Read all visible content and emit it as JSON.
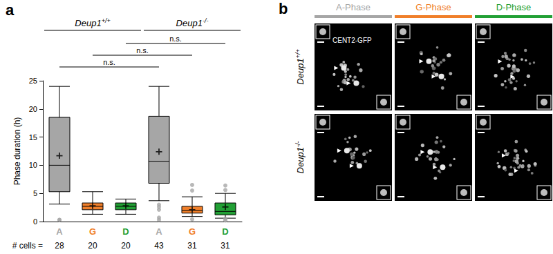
{
  "chart_data": {
    "type": "boxplot",
    "panel_label": "a",
    "categories": [
      "A",
      "G",
      "D",
      "A",
      "G",
      "D"
    ],
    "colors": [
      "#a6a6a6",
      "#f07f2a",
      "#22a035",
      "#a6a6a6",
      "#f07f2a",
      "#22a035"
    ],
    "boxes": [
      [
        3.1,
        5.3,
        10,
        18.5,
        24
      ],
      [
        1.3,
        2.1,
        2.7,
        3.3,
        5.3
      ],
      [
        1.3,
        2.1,
        2.7,
        3.3,
        4.0
      ],
      [
        3.7,
        6.8,
        10.7,
        18.7,
        24
      ],
      [
        0.9,
        1.5,
        2.0,
        2.7,
        4.4
      ],
      [
        0.6,
        1.2,
        1.8,
        3.3,
        5.0
      ]
    ],
    "means": [
      11.7,
      2.8,
      2.8,
      12.4,
      2.1,
      2.6
    ],
    "outliers": [
      [
        0.3,
        0.3
      ],
      [],
      [],
      [
        3.0,
        2.6,
        2.1,
        0.7,
        0.3
      ],
      [
        6.5,
        5.5,
        0.4
      ],
      [
        6.4,
        5.6,
        0.5,
        0.2
      ]
    ],
    "marker": "plus",
    "n_label": "# cells =",
    "n": [
      28,
      20,
      20,
      43,
      31,
      31
    ],
    "groups": [
      {
        "label": "Deup1",
        "superscript": "+/+",
        "categories": [
          0,
          1,
          2
        ]
      },
      {
        "label": "Deup1",
        "superscript": "-/-",
        "categories": [
          3,
          4,
          5
        ]
      }
    ],
    "comparisons": [
      {
        "categories": [
          0,
          3
        ],
        "label": "n.s."
      },
      {
        "categories": [
          1,
          4
        ],
        "label": "n.s."
      },
      {
        "categories": [
          2,
          5
        ],
        "label": "n.s."
      }
    ],
    "ylabel": "Phase duration (h)",
    "ylim": [
      0,
      25
    ],
    "yticks": [
      0,
      5,
      10,
      15,
      20,
      25
    ],
    "grid": false
  },
  "image_panel": {
    "panel_label": "b",
    "columns": [
      {
        "label": "A-Phase",
        "color": "#a6a6a6"
      },
      {
        "label": "G-Phase",
        "color": "#f07f2a"
      },
      {
        "label": "D-Phase",
        "color": "#22a035"
      }
    ],
    "rows": [
      {
        "label": "Deup1",
        "superscript": "+/+"
      },
      {
        "label": "Deup1",
        "superscript": "-/-"
      }
    ],
    "marker_label": "CENT2-GFP"
  }
}
